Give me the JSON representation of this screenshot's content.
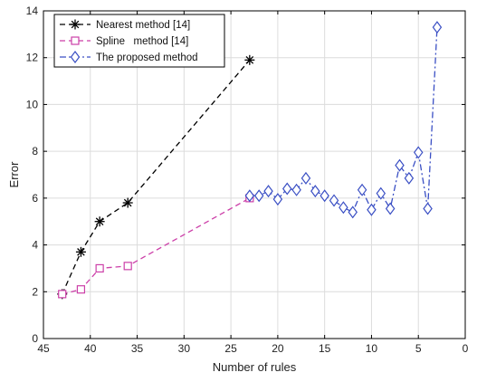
{
  "chart_data": {
    "type": "line",
    "title": "",
    "xlabel": "Number of rules",
    "ylabel": "Error",
    "xlim": [
      45,
      0
    ],
    "ylim": [
      0,
      14
    ],
    "x_reversed": true,
    "xticks": [
      45,
      40,
      35,
      30,
      25,
      20,
      15,
      10,
      5,
      0
    ],
    "yticks": [
      0,
      2,
      4,
      6,
      8,
      10,
      12,
      14
    ],
    "grid": true,
    "legend_position": "top-left",
    "series": [
      {
        "name": "Nearest method [14]",
        "color": "#000000",
        "line_style": "dashed",
        "marker": "asterisk",
        "x": [
          43,
          41,
          39,
          36,
          23
        ],
        "y": [
          1.9,
          3.7,
          5.0,
          5.8,
          11.9
        ]
      },
      {
        "name": "Spline   method [14]",
        "color": "#cc3fa8",
        "line_style": "dashed",
        "marker": "square",
        "x": [
          43,
          41,
          39,
          36,
          23
        ],
        "y": [
          1.9,
          2.1,
          3.0,
          3.1,
          6.0
        ]
      },
      {
        "name": "The proposed method",
        "color": "#3a4fc4",
        "line_style": "dash-dot",
        "marker": "diamond",
        "x": [
          23,
          22,
          21,
          20,
          19,
          18,
          17,
          16,
          15,
          14,
          13,
          12,
          11,
          10,
          9,
          8,
          7,
          6,
          5,
          4,
          3
        ],
        "y": [
          6.1,
          6.1,
          6.3,
          5.95,
          6.4,
          6.35,
          6.85,
          6.3,
          6.1,
          5.9,
          5.6,
          5.4,
          6.35,
          5.5,
          6.2,
          5.55,
          7.4,
          6.85,
          7.95,
          5.55,
          13.3
        ]
      }
    ]
  }
}
